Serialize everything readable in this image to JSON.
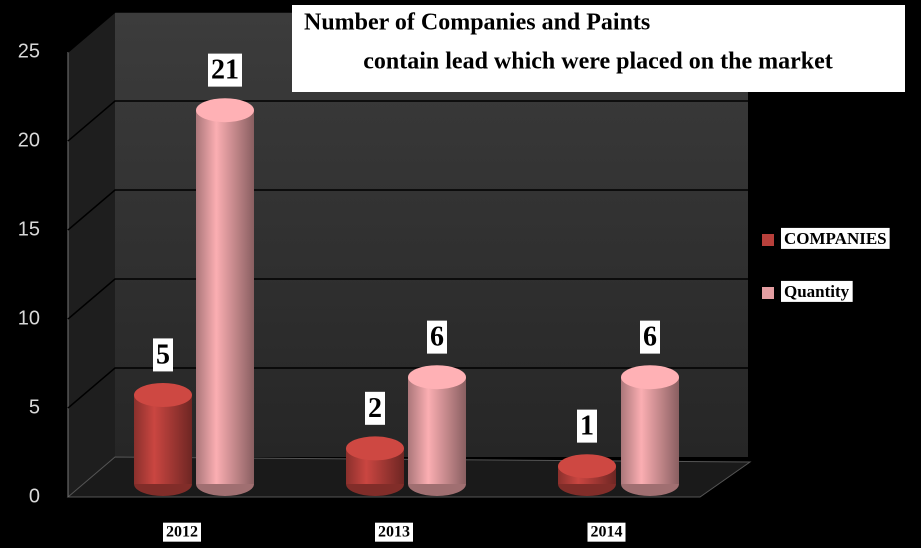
{
  "chart_data": {
    "type": "bar",
    "title": [
      "Number of Companies and Paints",
      "contain lead which were placed on the market"
    ],
    "categories": [
      "2012",
      "2013",
      "2014"
    ],
    "series": [
      {
        "name": "COMPANIES",
        "color": "#b8403b",
        "values": [
          5,
          2,
          1
        ]
      },
      {
        "name": "Quantity",
        "color": "#e49ea2",
        "values": [
          21,
          6,
          6
        ]
      }
    ],
    "ylim": [
      0,
      25
    ],
    "yticks": [
      0,
      5,
      10,
      15,
      20,
      25
    ],
    "grid": true,
    "legend": "right"
  }
}
